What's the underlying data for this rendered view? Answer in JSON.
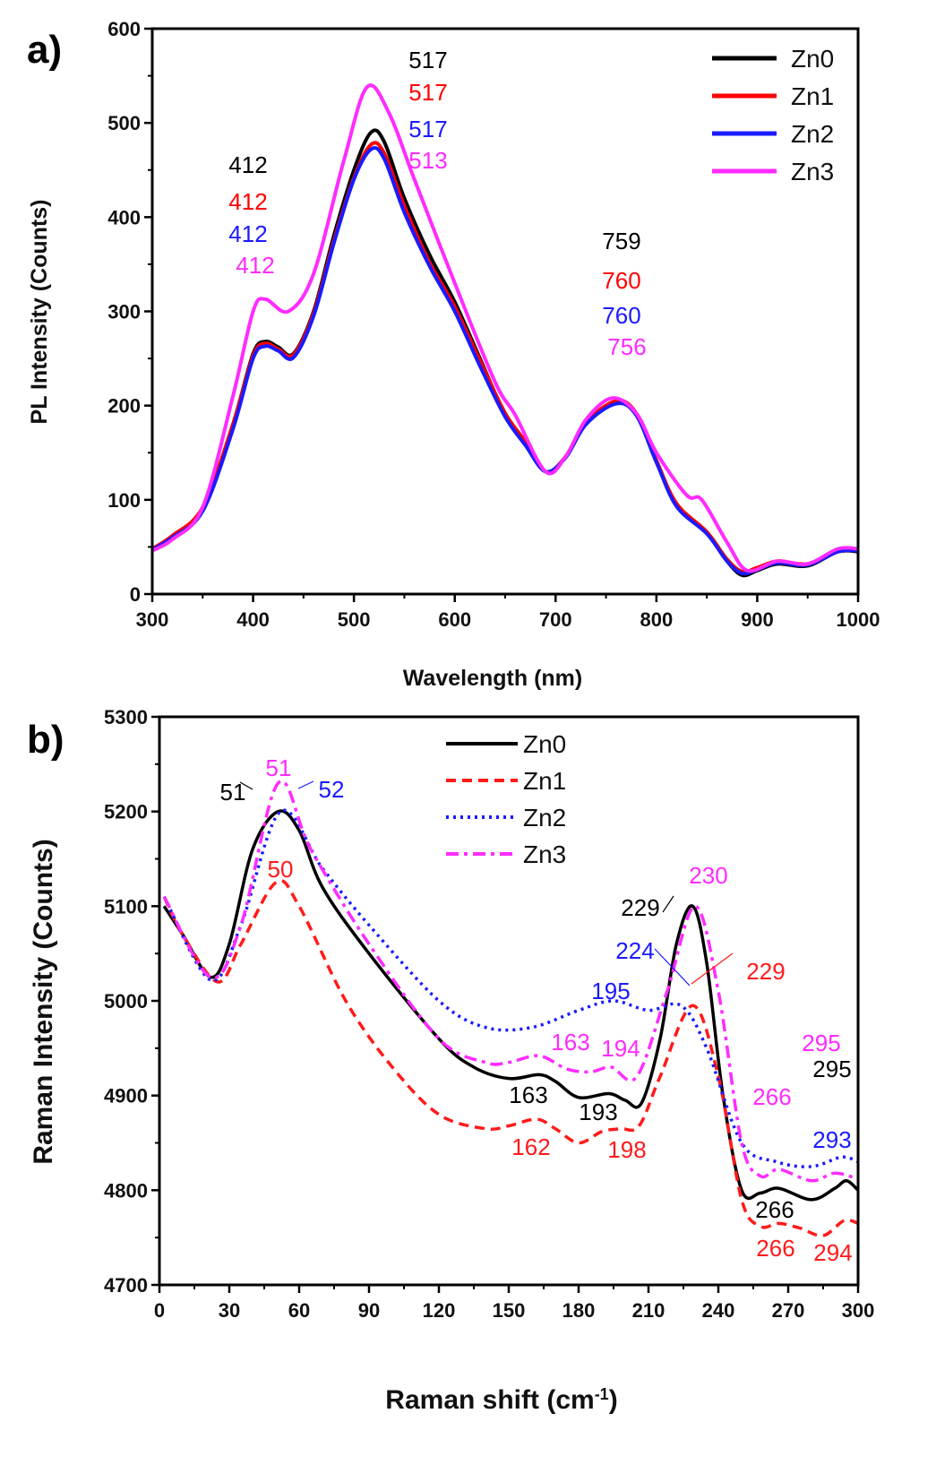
{
  "chart_data": [
    {
      "panel": "a)",
      "type": "line",
      "xlabel": "Wavelength (nm)",
      "ylabel": "PL Intensity (Counts)",
      "xlim": [
        300,
        1000
      ],
      "ylim": [
        0,
        600
      ],
      "xticks": [
        300,
        400,
        500,
        600,
        700,
        800,
        900,
        1000
      ],
      "yticks": [
        0,
        100,
        200,
        300,
        400,
        500,
        600
      ],
      "grid": false,
      "legend": "top-right",
      "series": [
        {
          "name": "Zn0",
          "color": "#000000",
          "style": "solid",
          "x": [
            300,
            320,
            350,
            380,
            400,
            412,
            425,
            440,
            460,
            480,
            500,
            517,
            530,
            550,
            575,
            600,
            625,
            650,
            670,
            690,
            710,
            730,
            759,
            780,
            800,
            820,
            850,
            870,
            885,
            900,
            920,
            950,
            980,
            1000
          ],
          "y": [
            48,
            60,
            90,
            180,
            255,
            268,
            262,
            255,
            300,
            380,
            450,
            490,
            480,
            420,
            360,
            310,
            250,
            190,
            160,
            130,
            145,
            180,
            203,
            190,
            140,
            95,
            65,
            35,
            20,
            25,
            32,
            30,
            45,
            45
          ]
        },
        {
          "name": "Zn1",
          "color": "#ff0000",
          "style": "solid",
          "x": [
            300,
            320,
            350,
            380,
            400,
            412,
            425,
            440,
            460,
            480,
            500,
            517,
            530,
            550,
            575,
            600,
            625,
            650,
            670,
            690,
            710,
            730,
            760,
            780,
            800,
            820,
            850,
            870,
            885,
            900,
            920,
            950,
            980,
            1000
          ],
          "y": [
            48,
            62,
            92,
            180,
            253,
            266,
            260,
            254,
            298,
            375,
            442,
            477,
            468,
            412,
            352,
            305,
            248,
            192,
            162,
            130,
            146,
            182,
            205,
            192,
            142,
            96,
            66,
            37,
            24,
            28,
            35,
            32,
            45,
            46
          ]
        },
        {
          "name": "Zn2",
          "color": "#1a1aff",
          "style": "solid",
          "x": [
            300,
            320,
            350,
            380,
            400,
            412,
            425,
            440,
            460,
            480,
            500,
            517,
            530,
            550,
            575,
            600,
            625,
            650,
            670,
            690,
            710,
            730,
            760,
            780,
            800,
            820,
            850,
            870,
            885,
            900,
            920,
            950,
            980,
            1000
          ],
          "y": [
            47,
            60,
            88,
            175,
            250,
            263,
            258,
            251,
            295,
            372,
            440,
            472,
            462,
            405,
            348,
            300,
            242,
            188,
            158,
            130,
            145,
            180,
            202,
            190,
            140,
            93,
            64,
            35,
            22,
            26,
            33,
            31,
            45,
            46
          ]
        },
        {
          "name": "Zn3",
          "color": "#ff2bff",
          "style": "solid",
          "x": [
            300,
            320,
            350,
            380,
            400,
            412,
            435,
            460,
            490,
            513,
            535,
            560,
            600,
            640,
            660,
            690,
            710,
            730,
            756,
            780,
            800,
            830,
            845,
            870,
            890,
            920,
            950,
            980,
            1000
          ],
          "y": [
            46,
            58,
            92,
            210,
            300,
            313,
            300,
            340,
            460,
            538,
            510,
            440,
            330,
            225,
            190,
            130,
            146,
            185,
            208,
            192,
            150,
            105,
            100,
            55,
            25,
            35,
            32,
            48,
            48
          ]
        }
      ],
      "annotations": [
        {
          "text": "517",
          "color": "#000000"
        },
        {
          "text": "517",
          "color": "#ff0000"
        },
        {
          "text": "517",
          "color": "#1a1aff"
        },
        {
          "text": "513",
          "color": "#ff2bff"
        },
        {
          "text": "412",
          "color": "#000000"
        },
        {
          "text": "412",
          "color": "#ff0000"
        },
        {
          "text": "412",
          "color": "#1a1aff"
        },
        {
          "text": "412",
          "color": "#ff2bff"
        },
        {
          "text": "759",
          "color": "#000000"
        },
        {
          "text": "760",
          "color": "#ff0000"
        },
        {
          "text": "760",
          "color": "#1a1aff"
        },
        {
          "text": "756",
          "color": "#ff2bff"
        }
      ]
    },
    {
      "panel": "b)",
      "type": "line",
      "xlabel": "Raman shift (cm",
      "xlabel_sup": "-1",
      "xlabel_end": ")",
      "ylabel": "Raman Intensity (Counts)",
      "xlim": [
        0,
        300
      ],
      "ylim": [
        4700,
        5300
      ],
      "xticks": [
        0,
        30,
        60,
        90,
        120,
        150,
        180,
        210,
        240,
        270,
        300
      ],
      "yticks": [
        4700,
        4800,
        4900,
        5000,
        5100,
        5200,
        5300
      ],
      "grid": false,
      "legend": "top-center",
      "series": [
        {
          "name": "Zn0",
          "color": "#000000",
          "style": "solid",
          "x": [
            2,
            10,
            22,
            30,
            40,
            51,
            60,
            70,
            90,
            120,
            135,
            150,
            163,
            170,
            180,
            193,
            200,
            207,
            215,
            222,
            229,
            235,
            242,
            250,
            258,
            266,
            280,
            290,
            295,
            300
          ],
          "y": [
            5100,
            5070,
            5025,
            5060,
            5160,
            5200,
            5180,
            5120,
            5050,
            4960,
            4930,
            4918,
            4922,
            4915,
            4898,
            4902,
            4895,
            4892,
            4960,
            5060,
            5100,
            5040,
            4900,
            4800,
            4797,
            4802,
            4790,
            4802,
            4810,
            4800
          ]
        },
        {
          "name": "Zn1",
          "color": "#ff1a1a",
          "style": "dashed",
          "x": [
            2,
            10,
            25,
            35,
            50,
            60,
            80,
            100,
            120,
            140,
            150,
            162,
            170,
            180,
            190,
            198,
            206,
            215,
            229,
            240,
            250,
            258,
            266,
            275,
            285,
            294,
            300
          ],
          "y": [
            5110,
            5070,
            5020,
            5060,
            5125,
            5100,
            5000,
            4930,
            4880,
            4865,
            4868,
            4875,
            4865,
            4850,
            4862,
            4865,
            4868,
            4920,
            4995,
            4920,
            4790,
            4762,
            4765,
            4760,
            4752,
            4768,
            4765
          ]
        },
        {
          "name": "Zn2",
          "color": "#1a1aff",
          "style": "dotted",
          "x": [
            2,
            22,
            35,
            52,
            70,
            90,
            120,
            140,
            160,
            180,
            195,
            210,
            224,
            235,
            250,
            265,
            280,
            293,
            300
          ],
          "y": [
            5110,
            5022,
            5080,
            5200,
            5140,
            5080,
            5000,
            4972,
            4972,
            4990,
            5000,
            4990,
            4995,
            4950,
            4850,
            4830,
            4825,
            4835,
            4830
          ]
        },
        {
          "name": "Zn3",
          "color": "#ff2bff",
          "style": "dashdot",
          "x": [
            2,
            22,
            35,
            51,
            65,
            90,
            120,
            140,
            150,
            163,
            175,
            185,
            194,
            205,
            218,
            230,
            240,
            250,
            258,
            266,
            280,
            290,
            300
          ],
          "y": [
            5110,
            5025,
            5080,
            5230,
            5160,
            5060,
            4960,
            4935,
            4935,
            4942,
            4928,
            4925,
            4930,
            4920,
            5010,
            5100,
            5010,
            4850,
            4815,
            4822,
            4810,
            4818,
            4812
          ]
        }
      ],
      "annotations": [
        {
          "text": "51",
          "color": "#ff2bff"
        },
        {
          "text": "51",
          "color": "#000000"
        },
        {
          "text": "52",
          "color": "#1a1aff"
        },
        {
          "text": "50",
          "color": "#ff1a1a"
        },
        {
          "text": "229",
          "color": "#000000"
        },
        {
          "text": "230",
          "color": "#ff2bff"
        },
        {
          "text": "224",
          "color": "#1a1aff"
        },
        {
          "text": "229",
          "color": "#ff1a1a"
        },
        {
          "text": "195",
          "color": "#1a1aff"
        },
        {
          "text": "163",
          "color": "#ff2bff"
        },
        {
          "text": "194",
          "color": "#ff2bff"
        },
        {
          "text": "163",
          "color": "#000000"
        },
        {
          "text": "193",
          "color": "#000000"
        },
        {
          "text": "162",
          "color": "#ff1a1a"
        },
        {
          "text": "198",
          "color": "#ff1a1a"
        },
        {
          "text": "295",
          "color": "#ff2bff"
        },
        {
          "text": "295",
          "color": "#000000"
        },
        {
          "text": "266",
          "color": "#ff2bff"
        },
        {
          "text": "293",
          "color": "#1a1aff"
        },
        {
          "text": "266",
          "color": "#000000"
        },
        {
          "text": "266",
          "color": "#ff1a1a"
        },
        {
          "text": "294",
          "color": "#ff1a1a"
        }
      ]
    }
  ]
}
